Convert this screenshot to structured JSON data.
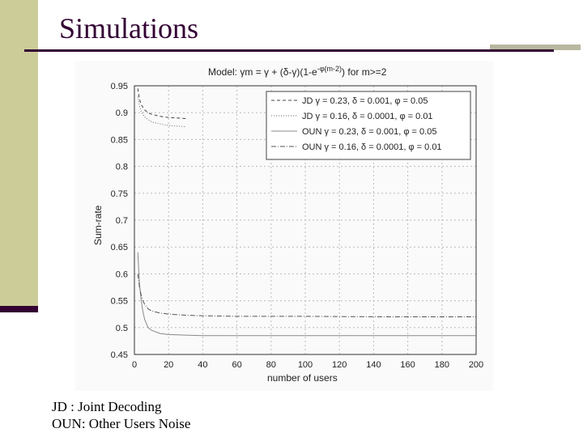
{
  "slide": {
    "title": "Simulations",
    "notes": [
      "JD : Joint Decoding",
      "OUN: Other Users Noise"
    ]
  },
  "colors": {
    "accent": "#330033",
    "sidebar": "#cccc99",
    "grid": "#bbbbbb",
    "series": [
      "#444444",
      "#666666",
      "#888888",
      "#555555"
    ]
  },
  "chart_data": {
    "type": "line",
    "title": {
      "prefix": "Model: ",
      "gamma_m": "γm = γ + (δ-γ)(1-e",
      "exp": "-φ(m-2)",
      "suffix": ") for m>=2"
    },
    "xlabel": "number of users",
    "ylabel": "Sum-rate",
    "xlim": [
      0,
      200
    ],
    "ylim": [
      0.45,
      0.95
    ],
    "xticks": [
      0,
      20,
      40,
      60,
      80,
      100,
      120,
      140,
      160,
      180,
      200
    ],
    "yticks": [
      0.45,
      0.5,
      0.55,
      0.6,
      0.65,
      0.7,
      0.75,
      0.8,
      0.85,
      0.9,
      0.95
    ],
    "xtick_labels": [
      "0",
      "20",
      "40",
      "60",
      "80",
      "100",
      "120",
      "140",
      "160",
      "180",
      "200"
    ],
    "ytick_labels": [
      "0.45",
      "0.5",
      "0.55",
      "0.6",
      "0.65",
      "0.7",
      "0.75",
      "0.8",
      "0.85",
      "0.9",
      "0.95"
    ],
    "grid": true,
    "legend_position": "top-right",
    "series": [
      {
        "name": "JD γ = 0.23, δ = 0.001, φ = 0.05",
        "style": "dashed",
        "x": [
          2,
          3,
          4,
          5,
          6,
          8,
          10,
          15,
          20,
          25,
          30
        ],
        "values": [
          0.945,
          0.925,
          0.915,
          0.91,
          0.905,
          0.9,
          0.897,
          0.893,
          0.891,
          0.89,
          0.889
        ]
      },
      {
        "name": "JD γ = 0.16, δ = 0.0001, φ = 0.01",
        "style": "dotted",
        "x": [
          2,
          3,
          4,
          5,
          6,
          8,
          10,
          15,
          20,
          25,
          30
        ],
        "values": [
          0.93,
          0.912,
          0.902,
          0.897,
          0.892,
          0.887,
          0.883,
          0.879,
          0.876,
          0.875,
          0.874
        ]
      },
      {
        "name": "OUN γ = 0.23, δ = 0.001, φ = 0.05",
        "style": "solid",
        "x": [
          2,
          3,
          4,
          5,
          6,
          8,
          10,
          15,
          20,
          30,
          40,
          60,
          80,
          100,
          150,
          200
        ],
        "values": [
          0.64,
          0.58,
          0.55,
          0.53,
          0.515,
          0.5,
          0.495,
          0.489,
          0.487,
          0.486,
          0.485,
          0.485,
          0.485,
          0.485,
          0.485,
          0.485
        ]
      },
      {
        "name": "OUN γ = 0.16, δ = 0.0001, φ = 0.01",
        "style": "dashdot",
        "x": [
          2,
          3,
          4,
          5,
          6,
          8,
          10,
          15,
          20,
          30,
          40,
          60,
          80,
          100,
          150,
          200
        ],
        "values": [
          0.6,
          0.575,
          0.56,
          0.55,
          0.543,
          0.535,
          0.531,
          0.527,
          0.525,
          0.523,
          0.522,
          0.521,
          0.521,
          0.521,
          0.52,
          0.52
        ]
      }
    ]
  }
}
